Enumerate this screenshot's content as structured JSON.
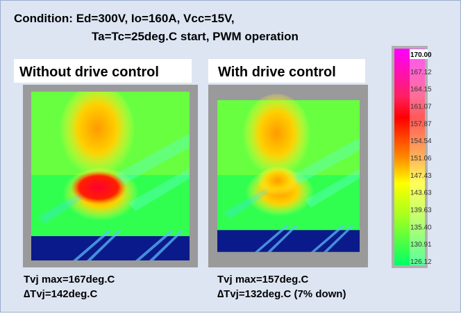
{
  "condition": {
    "line1": "Condition: Ed=300V, Io=160A, Vcc=15V,",
    "line2": "Ta=Tc=25deg.C start, PWM operation"
  },
  "panels": [
    {
      "title": "Without drive control",
      "tvj_max": "Tvj max=167deg.C",
      "delta_tvj": "∆Tvj=142deg.C"
    },
    {
      "title": "With drive control",
      "tvj_max": "Tvj max=157deg.C",
      "delta_tvj": "∆Tvj=132deg.C (7% down)"
    }
  ],
  "colorbar": {
    "labels": [
      "170.00",
      "167.12",
      "164.15",
      "161.07",
      "157.87",
      "154.54",
      "151.06",
      "147.43",
      "143.63",
      "139.63",
      "135.40",
      "130.91",
      "126.12"
    ]
  }
}
